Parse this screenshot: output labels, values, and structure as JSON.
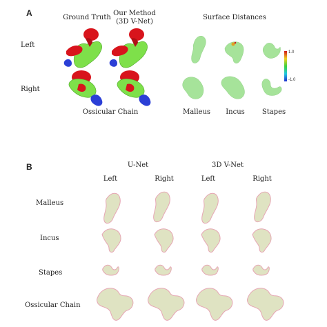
{
  "panel_a": {
    "label": "A",
    "col_ground_truth": "Ground Truth",
    "col_our_method_1": "Our Method",
    "col_our_method_2": "(3D V-Net)",
    "col_surface": "Surface Distances",
    "row_left": "Left",
    "row_right": "Right",
    "caption_ossicular": "Ossicular  Chain",
    "caption_malleus": "Malleus",
    "caption_incus": "Incus",
    "caption_stapes": "Stapes",
    "colorbar_max": "1.0",
    "colorbar_min": "-1.0"
  },
  "panel_b": {
    "label": "B",
    "group_unet": "U-Net",
    "group_vnet": "3D V-Net",
    "col_left_1": "Left",
    "col_right_1": "Right",
    "col_left_2": "Left",
    "col_right_2": "Right",
    "row_malleus": "Malleus",
    "row_incus": "Incus",
    "row_stapes": "Stapes",
    "row_ossicular": "Ossicular  Chain"
  },
  "colors": {
    "malleus_red": "#d8141c",
    "incus_green": "#7ee04a",
    "stapes_blue": "#2b3fd6",
    "surface_green": "#a6e39a",
    "overlay_fill": "#dfe3c2",
    "overlay_edge": "#e6a6b4"
  }
}
